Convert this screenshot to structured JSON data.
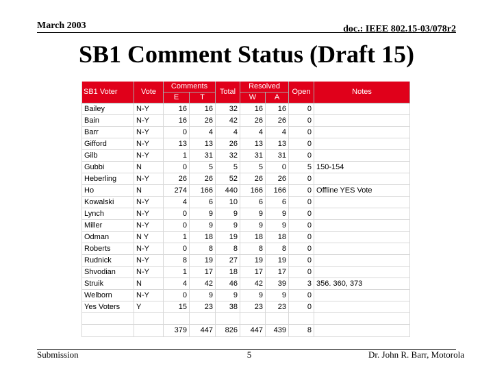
{
  "header": {
    "date": "March 2003",
    "doc": "doc.: IEEE 802.15-03/078r2"
  },
  "title": "SB1 Comment Status (Draft 15)",
  "table": {
    "headers": {
      "voter": "SB1 Voter",
      "vote": "Vote",
      "comments": "Comments",
      "comments_e": "E",
      "comments_t": "T",
      "total": "Total",
      "resolved": "Resolved",
      "resolved_w": "W",
      "resolved_a": "A",
      "open": "Open",
      "notes": "Notes"
    },
    "rows": [
      {
        "voter": "Bailey",
        "vote": "N-Y",
        "e": "16",
        "t": "16",
        "total": "32",
        "w": "16",
        "a": "16",
        "open": "0",
        "notes": ""
      },
      {
        "voter": "Bain",
        "vote": "N-Y",
        "e": "16",
        "t": "26",
        "total": "42",
        "w": "26",
        "a": "26",
        "open": "0",
        "notes": ""
      },
      {
        "voter": "Barr",
        "vote": "N-Y",
        "e": "0",
        "t": "4",
        "total": "4",
        "w": "4",
        "a": "4",
        "open": "0",
        "notes": ""
      },
      {
        "voter": "Gifford",
        "vote": "N-Y",
        "e": "13",
        "t": "13",
        "total": "26",
        "w": "13",
        "a": "13",
        "open": "0",
        "notes": ""
      },
      {
        "voter": "Gilb",
        "vote": "N-Y",
        "e": "1",
        "t": "31",
        "total": "32",
        "w": "31",
        "a": "31",
        "open": "0",
        "notes": ""
      },
      {
        "voter": "Gubbi",
        "vote": "N",
        "e": "0",
        "t": "5",
        "total": "5",
        "w": "5",
        "a": "0",
        "open": "5",
        "notes": "150-154"
      },
      {
        "voter": "Heberling",
        "vote": "N-Y",
        "e": "26",
        "t": "26",
        "total": "52",
        "w": "26",
        "a": "26",
        "open": "0",
        "notes": ""
      },
      {
        "voter": "Ho",
        "vote": "N",
        "e": "274",
        "t": "166",
        "total": "440",
        "w": "166",
        "a": "166",
        "open": "0",
        "notes": "Offline YES Vote"
      },
      {
        "voter": "Kowalski",
        "vote": "N-Y",
        "e": "4",
        "t": "6",
        "total": "10",
        "w": "6",
        "a": "6",
        "open": "0",
        "notes": ""
      },
      {
        "voter": "Lynch",
        "vote": "N-Y",
        "e": "0",
        "t": "9",
        "total": "9",
        "w": "9",
        "a": "9",
        "open": "0",
        "notes": ""
      },
      {
        "voter": "Miller",
        "vote": "N-Y",
        "e": "0",
        "t": "9",
        "total": "9",
        "w": "9",
        "a": "9",
        "open": "0",
        "notes": ""
      },
      {
        "voter": "Odman",
        "vote": "N Y",
        "e": "1",
        "t": "18",
        "total": "19",
        "w": "18",
        "a": "18",
        "open": "0",
        "notes": ""
      },
      {
        "voter": "Roberts",
        "vote": "N-Y",
        "e": "0",
        "t": "8",
        "total": "8",
        "w": "8",
        "a": "8",
        "open": "0",
        "notes": ""
      },
      {
        "voter": "Rudnick",
        "vote": "N-Y",
        "e": "8",
        "t": "19",
        "total": "27",
        "w": "19",
        "a": "19",
        "open": "0",
        "notes": ""
      },
      {
        "voter": "Shvodian",
        "vote": "N-Y",
        "e": "1",
        "t": "17",
        "total": "18",
        "w": "17",
        "a": "17",
        "open": "0",
        "notes": ""
      },
      {
        "voter": "Struik",
        "vote": "N",
        "e": "4",
        "t": "42",
        "total": "46",
        "w": "42",
        "a": "39",
        "open": "3",
        "notes": "356. 360, 373"
      },
      {
        "voter": "Welborn",
        "vote": "N-Y",
        "e": "0",
        "t": "9",
        "total": "9",
        "w": "9",
        "a": "9",
        "open": "0",
        "notes": ""
      },
      {
        "voter": "Yes Voters",
        "vote": "Y",
        "e": "15",
        "t": "23",
        "total": "38",
        "w": "23",
        "a": "23",
        "open": "0",
        "notes": ""
      },
      {
        "voter": "",
        "vote": "",
        "e": "",
        "t": "",
        "total": "",
        "w": "",
        "a": "",
        "open": "",
        "notes": ""
      }
    ],
    "totals": {
      "e": "379",
      "t": "447",
      "total": "826",
      "w": "447",
      "a": "439",
      "open": "8"
    }
  },
  "footer": {
    "left": "Submission",
    "page": "5",
    "right": "Dr. John R. Barr, Motorola"
  }
}
